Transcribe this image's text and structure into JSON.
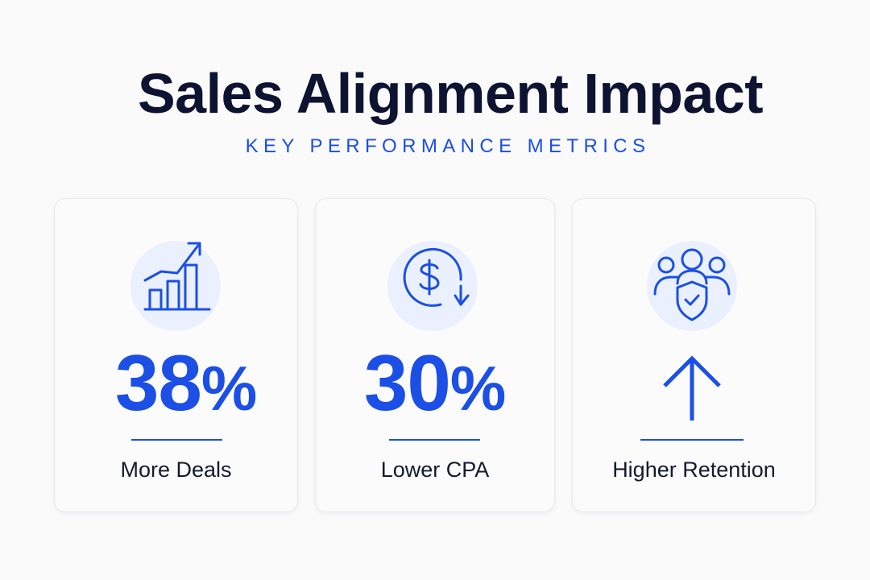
{
  "header": {
    "title": "Sales Alignment Impact",
    "subtitle": "KEY PERFORMANCE METRICS"
  },
  "colors": {
    "accent": "#1b4fe6",
    "title": "#0d1330",
    "icon_background": "#eaf0fd",
    "page_background": "#fafafb"
  },
  "metrics": [
    {
      "icon": "growth-bar-chart-icon",
      "value": "38",
      "unit": "%",
      "label": "More Deals"
    },
    {
      "icon": "dollar-decrease-icon",
      "value": "30",
      "unit": "%",
      "label": "Lower CPA"
    },
    {
      "icon": "team-shield-icon",
      "indicator": "up-arrow-icon",
      "label": "Higher Retention"
    }
  ]
}
